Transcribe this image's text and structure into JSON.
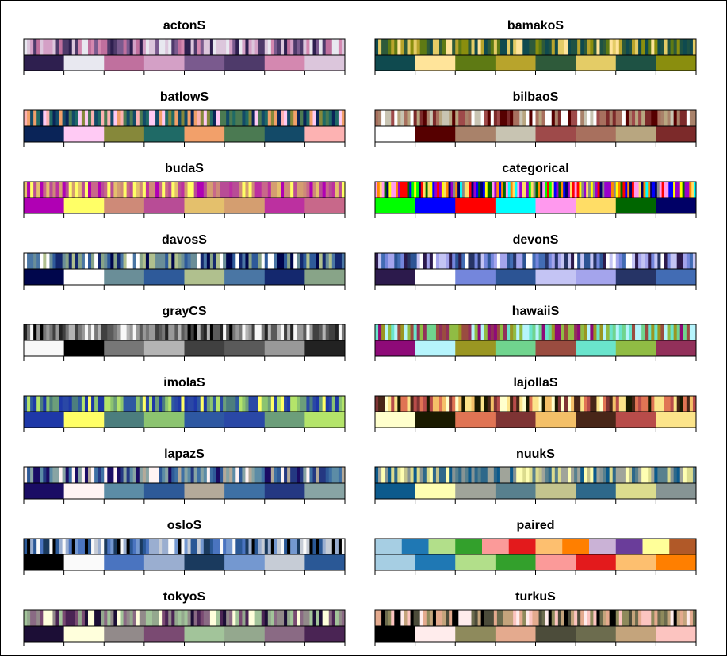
{
  "chart_data": [
    {
      "type": "heatmap",
      "title": "actonS",
      "top_colors": [
        "#2e1f4f",
        "#e8e8f0",
        "#c0709e",
        "#d4a0c6",
        "#7a5a8e",
        "#4e3a6a",
        "#d488b0",
        "#dcc6dc"
      ],
      "bottom_colors": [
        "#2e1f4f",
        "#e8e8f0",
        "#c0709e",
        "#d4a0c6",
        "#7a5a8e",
        "#4e3a6a",
        "#d488b0",
        "#dcc6dc"
      ]
    },
    {
      "type": "heatmap",
      "title": "bamakoS",
      "top_colors": [
        "#0f4a4f",
        "#ffe49a",
        "#5e7a14",
        "#b8a42c",
        "#2e5a3a",
        "#e4cc66",
        "#1e5244",
        "#8a8e0e"
      ],
      "bottom_colors": [
        "#0f4a4f",
        "#ffe49a",
        "#5e7a14",
        "#b8a42c",
        "#2e5a3a",
        "#e4cc66",
        "#1e5244",
        "#8a8e0e"
      ]
    },
    {
      "type": "heatmap",
      "title": "batlowS",
      "top_colors": [
        "#0a2458",
        "#ffcaf4",
        "#86883a",
        "#1f6a66",
        "#f2a06a",
        "#4b7a52",
        "#134a68",
        "#fdb2b2"
      ],
      "bottom_colors": [
        "#0a2458",
        "#ffcaf4",
        "#86883a",
        "#1f6a66",
        "#f2a06a",
        "#4b7a52",
        "#134a68",
        "#fdb2b2"
      ]
    },
    {
      "type": "heatmap",
      "title": "bilbaoS",
      "top_colors": [
        "#ffffff",
        "#560000",
        "#a9826a",
        "#c8c4b2",
        "#9e4a4a",
        "#a8705e",
        "#b8a680",
        "#7c2a2a"
      ],
      "bottom_colors": [
        "#ffffff",
        "#560000",
        "#a9826a",
        "#c8c4b2",
        "#9e4a4a",
        "#a8705e",
        "#b8a680",
        "#7c2a2a"
      ]
    },
    {
      "type": "heatmap",
      "title": "budaS",
      "top_colors": [
        "#b000b4",
        "#ffff66",
        "#ce8a78",
        "#b84c96",
        "#e4c06c",
        "#d49e70",
        "#bc30a0",
        "#c8688a"
      ],
      "bottom_colors": [
        "#b000b4",
        "#ffff66",
        "#ce8a78",
        "#b84c96",
        "#e4c06c",
        "#d49e70",
        "#bc30a0",
        "#c8688a"
      ]
    },
    {
      "type": "heatmap",
      "title": "categorical",
      "top_colors": [
        "#00ff00",
        "#0000ff",
        "#ff0000",
        "#00ffff",
        "#ff99ee",
        "#ffdd66",
        "#006600",
        "#000066",
        "#ffff00",
        "#9900cc",
        "#ff8800",
        "#888888"
      ],
      "bottom_colors": [
        "#00ff00",
        "#0000ff",
        "#ff0000",
        "#00ffff",
        "#ff99ee",
        "#ffdd66",
        "#006600",
        "#000066"
      ]
    },
    {
      "type": "heatmap",
      "title": "davosS",
      "top_colors": [
        "#00064c",
        "#ffffff",
        "#6a8e98",
        "#2e5a9a",
        "#b0c08e",
        "#4a76a4",
        "#14286e",
        "#88a488"
      ],
      "bottom_colors": [
        "#00064c",
        "#ffffff",
        "#6a8e98",
        "#2e5a9a",
        "#b0c08e",
        "#4a76a4",
        "#14286e",
        "#88a488"
      ]
    },
    {
      "type": "heatmap",
      "title": "devonS",
      "top_colors": [
        "#2c1a4c",
        "#ffffff",
        "#7486dc",
        "#2c5494",
        "#c4c4f4",
        "#a4a4ec",
        "#263466",
        "#426cb4"
      ],
      "bottom_colors": [
        "#2c1a4c",
        "#ffffff",
        "#7486dc",
        "#2c5494",
        "#c4c4f4",
        "#a4a4ec",
        "#263466",
        "#426cb4"
      ]
    },
    {
      "type": "heatmap",
      "title": "grayCS",
      "top_colors": [
        "#f8f8f8",
        "#000000",
        "#777777",
        "#b4b4b4",
        "#404040",
        "#5a5a5a",
        "#999999",
        "#222222"
      ],
      "bottom_colors": [
        "#f8f8f8",
        "#000000",
        "#777777",
        "#b4b4b4",
        "#404040",
        "#5a5a5a",
        "#999999",
        "#222222"
      ]
    },
    {
      "type": "heatmap",
      "title": "hawaiiS",
      "top_colors": [
        "#8e0a78",
        "#b6f4fc",
        "#9a9622",
        "#70d48e",
        "#9a4c40",
        "#6ae4cc",
        "#90bc44",
        "#92305a"
      ],
      "bottom_colors": [
        "#8e0a78",
        "#b6f4fc",
        "#9a9622",
        "#70d48e",
        "#9a4c40",
        "#6ae4cc",
        "#90bc44",
        "#92305a"
      ]
    },
    {
      "type": "heatmap",
      "title": "imolaS",
      "top_colors": [
        "#1e38a8",
        "#ffff66",
        "#4c7e7e",
        "#8cc470",
        "#2e58a2",
        "#2a48a6",
        "#6c9e7a",
        "#b4e46a"
      ],
      "bottom_colors": [
        "#1e38a8",
        "#ffff66",
        "#4c7e7e",
        "#8cc470",
        "#2e58a2",
        "#2a48a6",
        "#6c9e7a",
        "#b4e46a"
      ]
    },
    {
      "type": "heatmap",
      "title": "lajollaS",
      "top_colors": [
        "#ffffcc",
        "#1a1a00",
        "#e07454",
        "#7e3434",
        "#f4c068",
        "#482618",
        "#b84c4a",
        "#fce48a"
      ],
      "bottom_colors": [
        "#ffffcc",
        "#1a1a00",
        "#e07454",
        "#7e3434",
        "#f4c068",
        "#482618",
        "#b84c4a",
        "#fce48a"
      ]
    },
    {
      "type": "heatmap",
      "title": "lapazS",
      "top_colors": [
        "#1a0c64",
        "#fff4f4",
        "#5c8ca6",
        "#2e5a98",
        "#b4aa9a",
        "#3e70a4",
        "#243882",
        "#88a4a4"
      ],
      "bottom_colors": [
        "#1a0c64",
        "#fff4f4",
        "#5c8ca6",
        "#2e5a98",
        "#b4aa9a",
        "#3e70a4",
        "#243882",
        "#88a4a4"
      ]
    },
    {
      "type": "heatmap",
      "title": "nuukS",
      "top_colors": [
        "#0c5a8c",
        "#fefeb2",
        "#a0a49a",
        "#58808e",
        "#c4c48e",
        "#2e688a",
        "#dcdc8e",
        "#869494"
      ],
      "bottom_colors": [
        "#0c5a8c",
        "#fefeb2",
        "#a0a49a",
        "#58808e",
        "#c4c48e",
        "#2e688a",
        "#dcdc8e",
        "#869494"
      ]
    },
    {
      "type": "heatmap",
      "title": "osloS",
      "top_colors": [
        "#000000",
        "#fafafa",
        "#4a74c0",
        "#9aaed0",
        "#1a3a5e",
        "#7498d0",
        "#c6ccd6",
        "#2a5896"
      ],
      "bottom_colors": [
        "#000000",
        "#fafafa",
        "#4a74c0",
        "#9aaed0",
        "#1a3a5e",
        "#7498d0",
        "#c6ccd6",
        "#2a5896"
      ]
    },
    {
      "type": "heatmap",
      "title": "paired",
      "top_colors": [
        "#a6cee3",
        "#1f78b4",
        "#b2df8a",
        "#33a02c",
        "#fb9a99",
        "#e31a1c",
        "#fdbf6f",
        "#ff7f00",
        "#cab2d6",
        "#6a3d9a",
        "#ffff99",
        "#b15928"
      ],
      "bottom_colors": [
        "#a6cee3",
        "#1f78b4",
        "#b2df8a",
        "#33a02c",
        "#fb9a99",
        "#e31a1c",
        "#fdbf6f",
        "#ff7f00"
      ]
    },
    {
      "type": "heatmap",
      "title": "tokyoS",
      "top_colors": [
        "#1c0e36",
        "#ffffdc",
        "#928a8a",
        "#7a4a72",
        "#a2c49a",
        "#94a88e",
        "#8a6a84",
        "#4a2454"
      ],
      "bottom_colors": [
        "#1c0e36",
        "#ffffdc",
        "#928a8a",
        "#7a4a72",
        "#a2c49a",
        "#94a88e",
        "#8a6a84",
        "#4a2454"
      ]
    },
    {
      "type": "heatmap",
      "title": "turkuS",
      "top_colors": [
        "#000000",
        "#ffecec",
        "#8e8a5c",
        "#e4aa8e",
        "#4c4c3a",
        "#6c6c4e",
        "#c4a47c",
        "#fcc4c0"
      ],
      "bottom_colors": [
        "#000000",
        "#ffecec",
        "#8e8a5c",
        "#e4aa8e",
        "#4c4c3a",
        "#6c6c4e",
        "#c4a47c",
        "#fcc4c0"
      ]
    }
  ]
}
